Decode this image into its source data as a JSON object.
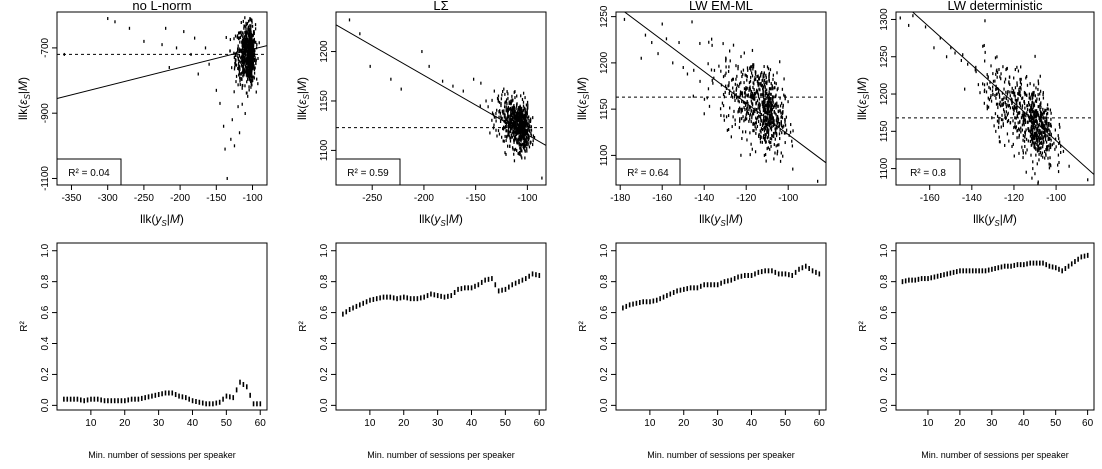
{
  "figure": {
    "top_xlabel": "llk(y_S|M)",
    "top_ylabel": "llk(ε_S|M)",
    "bottom_xlabel": "Min. number of sessions per speaker",
    "bottom_ylabel": "R²"
  },
  "chart_data": [
    {
      "type": "scatter",
      "title": "no L-norm",
      "xlabel": "llk(y_S|M)",
      "ylabel": "llk(ε_S|M)",
      "xlim": [
        -370,
        -80
      ],
      "ylim": [
        -1120,
        -590
      ],
      "xticks": [
        -350,
        -300,
        -250,
        -200,
        -150,
        -100
      ],
      "yticks": [
        -1100,
        -900,
        -700
      ],
      "regression_line": [
        [
          -370,
          -855
        ],
        [
          -80,
          -693
        ]
      ],
      "hline": -720,
      "r2_label": "R² = 0.04",
      "cluster": {
        "x_center": -105,
        "x_spread": 9,
        "y_center": -720,
        "y_spread": 45,
        "n": 700
      },
      "outliers": [
        [
          -360,
          -720
        ],
        [
          -300,
          -610
        ],
        [
          -290,
          -620
        ],
        [
          -270,
          -640
        ],
        [
          -250,
          -680
        ],
        [
          -225,
          -690
        ],
        [
          -220,
          -640
        ],
        [
          -215,
          -760
        ],
        [
          -205,
          -700
        ],
        [
          -195,
          -650
        ],
        [
          -185,
          -720
        ],
        [
          -180,
          -670
        ],
        [
          -175,
          -780
        ],
        [
          -165,
          -700
        ],
        [
          -160,
          -750
        ],
        [
          -150,
          -830
        ],
        [
          -145,
          -870
        ],
        [
          -140,
          -940
        ],
        [
          -138,
          -1010
        ],
        [
          -135,
          -1100
        ],
        [
          -130,
          -980
        ],
        [
          -128,
          -920
        ],
        [
          -125,
          -1000
        ],
        [
          -120,
          -880
        ],
        [
          -118,
          -960
        ]
      ]
    },
    {
      "type": "scatter",
      "title": "LΣ",
      "xlabel": "llk(y_S|M)",
      "ylabel": "llk(ε_S|M)",
      "xlim": [
        -285,
        -82
      ],
      "ylim": [
        1065,
        1240
      ],
      "xticks": [
        -250,
        -200,
        -150,
        -100
      ],
      "yticks": [
        1100,
        1150,
        1200
      ],
      "regression_line": [
        [
          -285,
          1227
        ],
        [
          -82,
          1105
        ]
      ],
      "hline": 1123,
      "r2_label": "R² = 0.59",
      "cluster": {
        "x_center": -108,
        "x_spread": 10,
        "y_center": 1125,
        "y_spread": 12,
        "n": 700
      },
      "outliers": [
        [
          -272,
          1232
        ],
        [
          -262,
          1218
        ],
        [
          -252,
          1185
        ],
        [
          -232,
          1172
        ],
        [
          -222,
          1162
        ],
        [
          -202,
          1200
        ],
        [
          -195,
          1185
        ],
        [
          -182,
          1170
        ],
        [
          -172,
          1165
        ],
        [
          -162,
          1160
        ],
        [
          -152,
          1172
        ],
        [
          -145,
          1168
        ],
        [
          -140,
          1150
        ],
        [
          -132,
          1160
        ],
        [
          -128,
          1155
        ],
        [
          -86,
          1072
        ]
      ]
    },
    {
      "type": "scatter",
      "title": "LW  EM-ML",
      "xlabel": "llk(y_S|M)",
      "ylabel": "llk(ε_S|M)",
      "xlim": [
        -182,
        -82
      ],
      "ylim": [
        1068,
        1255
      ],
      "xticks": [
        -180,
        -160,
        -140,
        -120,
        -100
      ],
      "yticks": [
        1100,
        1150,
        1200,
        1250
      ],
      "regression_line": [
        [
          -182,
          1262
        ],
        [
          -82,
          1092
        ]
      ],
      "hline": 1163,
      "r2_label": "R² = 0.64",
      "cluster": {
        "x_center": -112,
        "x_spread": 10,
        "y_center": 1152,
        "y_spread": 22,
        "n": 700
      },
      "outliers": [
        [
          -178,
          1247
        ],
        [
          -170,
          1205
        ],
        [
          -168,
          1230
        ],
        [
          -165,
          1222
        ],
        [
          -162,
          1210
        ],
        [
          -160,
          1242
        ],
        [
          -158,
          1226
        ],
        [
          -155,
          1200
        ],
        [
          -152,
          1222
        ],
        [
          -150,
          1195
        ],
        [
          -148,
          1188
        ],
        [
          -145,
          1192
        ],
        [
          -142,
          1180
        ],
        [
          -140,
          1145
        ],
        [
          -138,
          1172
        ],
        [
          -86,
          1072
        ]
      ]
    },
    {
      "type": "scatter",
      "title": "LW  deterministic",
      "xlabel": "llk(y_S|M)",
      "ylabel": "llk(ε_S|M)",
      "xlim": [
        -176,
        -82
      ],
      "ylim": [
        1078,
        1310
      ],
      "xticks": [
        -160,
        -140,
        -120,
        -100
      ],
      "yticks": [
        1100,
        1150,
        1200,
        1250,
        1300
      ],
      "regression_line": [
        [
          -176,
          1330
        ],
        [
          -82,
          1092
        ]
      ],
      "hline": 1168,
      "r2_label": "R² = 0.8",
      "cluster": {
        "x_center": -112,
        "x_spread": 11,
        "y_center": 1165,
        "y_spread": 25,
        "n": 700
      },
      "outliers": [
        [
          -174,
          1302
        ],
        [
          -170,
          1292
        ],
        [
          -168,
          1305
        ],
        [
          -162,
          1290
        ],
        [
          -158,
          1262
        ],
        [
          -155,
          1275
        ],
        [
          -152,
          1250
        ],
        [
          -150,
          1262
        ],
        [
          -148,
          1255
        ],
        [
          -145,
          1245
        ],
        [
          -142,
          1240
        ],
        [
          -138,
          1230
        ],
        [
          -85,
          1085
        ]
      ]
    },
    {
      "type": "line",
      "xlabel": "Min. number of sessions per speaker",
      "ylabel": "R²",
      "xlim": [
        0,
        62
      ],
      "ylim": [
        -0.03,
        1.05
      ],
      "xticks": [
        10,
        20,
        30,
        40,
        50,
        60
      ],
      "yticks": [
        0.0,
        0.2,
        0.4,
        0.6,
        0.8,
        1.0
      ],
      "x": [
        2,
        4,
        6,
        8,
        10,
        12,
        14,
        16,
        18,
        20,
        22,
        24,
        26,
        28,
        30,
        32,
        34,
        36,
        38,
        40,
        42,
        44,
        46,
        48,
        50,
        52,
        54,
        56,
        58,
        60
      ],
      "y": [
        0.04,
        0.04,
        0.04,
        0.03,
        0.04,
        0.04,
        0.03,
        0.03,
        0.03,
        0.03,
        0.04,
        0.04,
        0.05,
        0.06,
        0.07,
        0.08,
        0.08,
        0.06,
        0.05,
        0.03,
        0.02,
        0.01,
        0.01,
        0.02,
        0.06,
        0.05,
        0.15,
        0.12,
        0.01,
        0.01
      ]
    },
    {
      "type": "line",
      "xlabel": "Min. number of sessions per speaker",
      "ylabel": "R²",
      "xlim": [
        0,
        62
      ],
      "ylim": [
        -0.03,
        1.05
      ],
      "xticks": [
        10,
        20,
        30,
        40,
        50,
        60
      ],
      "yticks": [
        0.0,
        0.2,
        0.4,
        0.6,
        0.8,
        1.0
      ],
      "x": [
        2,
        4,
        6,
        8,
        10,
        12,
        14,
        16,
        18,
        20,
        22,
        24,
        26,
        28,
        30,
        32,
        34,
        36,
        38,
        40,
        42,
        44,
        46,
        48,
        50,
        52,
        54,
        56,
        58,
        60
      ],
      "y": [
        0.59,
        0.62,
        0.64,
        0.66,
        0.68,
        0.69,
        0.7,
        0.7,
        0.69,
        0.7,
        0.69,
        0.69,
        0.7,
        0.72,
        0.71,
        0.7,
        0.71,
        0.75,
        0.76,
        0.76,
        0.78,
        0.81,
        0.82,
        0.74,
        0.75,
        0.78,
        0.8,
        0.82,
        0.85,
        0.84
      ]
    },
    {
      "type": "line",
      "xlabel": "Min. number of sessions per speaker",
      "ylabel": "R²",
      "xlim": [
        0,
        62
      ],
      "ylim": [
        -0.03,
        1.05
      ],
      "xticks": [
        10,
        20,
        30,
        40,
        50,
        60
      ],
      "yticks": [
        0.0,
        0.2,
        0.4,
        0.6,
        0.8,
        1.0
      ],
      "x": [
        2,
        4,
        6,
        8,
        10,
        12,
        14,
        16,
        18,
        20,
        22,
        24,
        26,
        28,
        30,
        32,
        34,
        36,
        38,
        40,
        42,
        44,
        46,
        48,
        50,
        52,
        54,
        56,
        58,
        60
      ],
      "y": [
        0.63,
        0.65,
        0.66,
        0.67,
        0.67,
        0.68,
        0.7,
        0.72,
        0.74,
        0.75,
        0.76,
        0.76,
        0.78,
        0.78,
        0.78,
        0.8,
        0.81,
        0.83,
        0.84,
        0.84,
        0.86,
        0.87,
        0.87,
        0.85,
        0.85,
        0.84,
        0.88,
        0.9,
        0.87,
        0.85
      ]
    },
    {
      "type": "line",
      "xlabel": "Min. number of sessions per speaker",
      "ylabel": "R²",
      "xlim": [
        0,
        62
      ],
      "ylim": [
        -0.03,
        1.05
      ],
      "xticks": [
        10,
        20,
        30,
        40,
        50,
        60
      ],
      "yticks": [
        0.0,
        0.2,
        0.4,
        0.6,
        0.8,
        1.0
      ],
      "x": [
        2,
        4,
        6,
        8,
        10,
        12,
        14,
        16,
        18,
        20,
        22,
        24,
        26,
        28,
        30,
        32,
        34,
        36,
        38,
        40,
        42,
        44,
        46,
        48,
        50,
        52,
        54,
        56,
        58,
        60
      ],
      "y": [
        0.8,
        0.81,
        0.81,
        0.82,
        0.82,
        0.83,
        0.84,
        0.85,
        0.86,
        0.87,
        0.87,
        0.87,
        0.87,
        0.87,
        0.88,
        0.89,
        0.9,
        0.9,
        0.91,
        0.91,
        0.92,
        0.92,
        0.92,
        0.9,
        0.89,
        0.87,
        0.9,
        0.93,
        0.96,
        0.97
      ]
    }
  ]
}
